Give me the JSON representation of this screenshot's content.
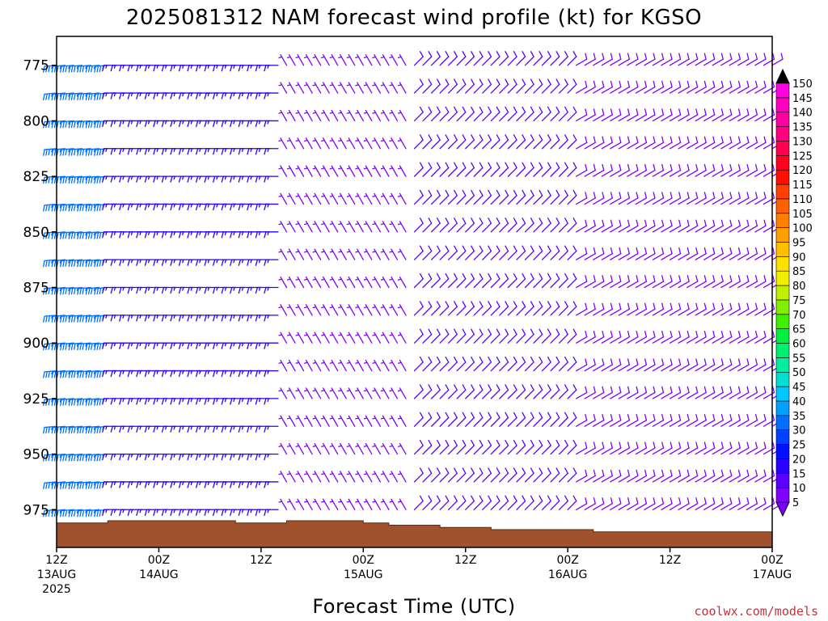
{
  "chart_data": {
    "type": "wind-barb-time-height",
    "title": "2025081312 NAM forecast wind profile (kt) for KGSO",
    "xlabel": "Forecast Time (UTC)",
    "y_ticks": [
      "775",
      "800",
      "825",
      "850",
      "875",
      "900",
      "925",
      "950",
      "975"
    ],
    "y_tick_values": [
      775,
      800,
      825,
      850,
      875,
      900,
      925,
      950,
      975
    ],
    "ylim": [
      762,
      992
    ],
    "y_inverted": true,
    "x_ticks": [
      {
        "hour": 0,
        "line1": "12Z",
        "line2": "13AUG",
        "line3": "2025"
      },
      {
        "hour": 12,
        "line1": "00Z",
        "line2": "14AUG",
        "line3": ""
      },
      {
        "hour": 24,
        "line1": "12Z",
        "line2": "",
        "line3": ""
      },
      {
        "hour": 36,
        "line1": "00Z",
        "line2": "15AUG",
        "line3": ""
      },
      {
        "hour": 48,
        "line1": "12Z",
        "line2": "",
        "line3": ""
      },
      {
        "hour": 60,
        "line1": "00Z",
        "line2": "16AUG",
        "line3": ""
      },
      {
        "hour": 72,
        "line1": "12Z",
        "line2": "",
        "line3": ""
      },
      {
        "hour": 84,
        "line1": "00Z",
        "line2": "17AUG",
        "line3": ""
      }
    ],
    "xlim": [
      0,
      84
    ],
    "colorbar": {
      "unit": "kt",
      "levels": [
        5,
        10,
        15,
        20,
        25,
        30,
        35,
        40,
        45,
        50,
        55,
        60,
        65,
        70,
        75,
        80,
        85,
        90,
        95,
        100,
        105,
        110,
        115,
        120,
        125,
        130,
        135,
        140,
        145,
        150
      ],
      "labels": [
        "5",
        "10",
        "15",
        "20",
        "25",
        "30",
        "35",
        "40",
        "45",
        "50",
        "55",
        "60",
        "65",
        "70",
        "75",
        "80",
        "85",
        "90",
        "95",
        "100",
        "105",
        "110",
        "115",
        "120",
        "125",
        "130",
        "135",
        "140",
        "145",
        "150"
      ],
      "colors": [
        "#7f00ff",
        "#5a00ff",
        "#2a00ff",
        "#0010ff",
        "#0040ff",
        "#0070ff",
        "#00a0ff",
        "#00c8ff",
        "#00e0d0",
        "#00f0a0",
        "#00f070",
        "#00f040",
        "#40f000",
        "#80f000",
        "#c0f000",
        "#f0f000",
        "#ffe000",
        "#ffc000",
        "#ffa000",
        "#ff8000",
        "#ff6000",
        "#ff4000",
        "#ff1000",
        "#ff0020",
        "#ff0050",
        "#ff0080",
        "#ff00a0",
        "#ff00c0",
        "#ff00e0",
        "#e000ff"
      ],
      "top_arrow_color": "#000000",
      "bottom_arrow_color": "#7f00ff"
    },
    "terrain": {
      "color": "#a0522d",
      "hours": [
        0,
        3,
        6,
        9,
        12,
        15,
        18,
        21,
        24,
        27,
        30,
        33,
        36,
        39,
        42,
        45,
        48,
        51,
        54,
        57,
        60,
        63,
        66,
        69,
        72,
        75,
        78,
        81,
        84
      ],
      "pressure": [
        981,
        981,
        980,
        980,
        980,
        980,
        980,
        981,
        981,
        980,
        980,
        980,
        981,
        982,
        982,
        983,
        983,
        984,
        984,
        984,
        984,
        985,
        985,
        985,
        985,
        985,
        985,
        985,
        985
      ]
    },
    "wind_column_hours": [
      0,
      1,
      2,
      3,
      4,
      5,
      6,
      7,
      8,
      9,
      10,
      11,
      12,
      13,
      14,
      15,
      16,
      17,
      18,
      19,
      20,
      21,
      22,
      23,
      24,
      25,
      26,
      27,
      28,
      29,
      30,
      31,
      32,
      33,
      34,
      35,
      36,
      37,
      38,
      39,
      40,
      41,
      42,
      43,
      44,
      45,
      46,
      47,
      48,
      49,
      50,
      51,
      52,
      53,
      54,
      55,
      56,
      57,
      58,
      59,
      60,
      61,
      62,
      63,
      64,
      65,
      66,
      67,
      68,
      69,
      70,
      71,
      72,
      73,
      74,
      75,
      76,
      77,
      78,
      79,
      80,
      81,
      82,
      83,
      84
    ],
    "wind_level_pressures": [
      775,
      787.5,
      800,
      812.5,
      825,
      837.5,
      850,
      862.5,
      875,
      887.5,
      900,
      912.5,
      925,
      937.5,
      950,
      962.5,
      975
    ],
    "wind_regimes": [
      {
        "hours": [
          0,
          6
        ],
        "direction_deg": 265,
        "speed_kt": 35,
        "color": "#0070ff"
      },
      {
        "hours": [
          7,
          26
        ],
        "direction_deg": 270,
        "speed_kt": 15,
        "color": "#2a00ff"
      },
      {
        "hours": [
          27,
          41
        ],
        "direction_deg": 330,
        "speed_kt": 8,
        "color": "#7f00ff"
      },
      {
        "hours": [
          42,
          60
        ],
        "direction_deg": 45,
        "speed_kt": 12,
        "color": "#5a00ff"
      },
      {
        "hours": [
          61,
          84
        ],
        "direction_deg": 60,
        "speed_kt": 10,
        "color": "#7f00ff"
      }
    ]
  },
  "credit": "coolwx.com/models"
}
